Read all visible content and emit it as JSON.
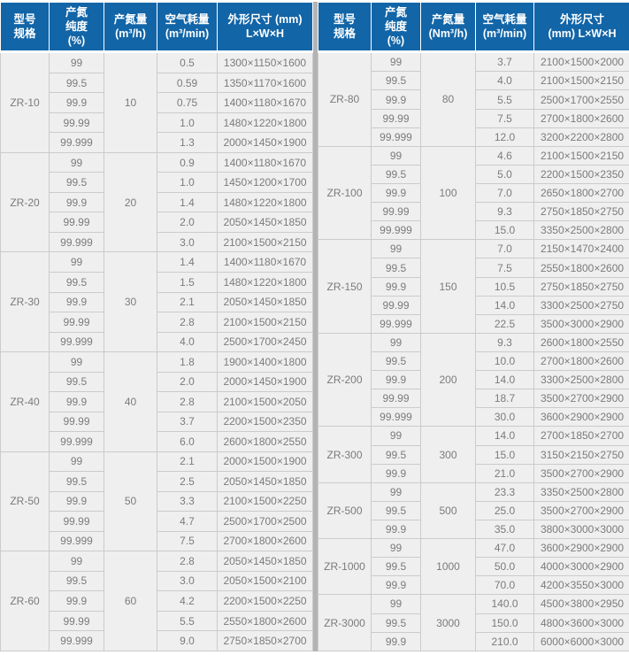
{
  "colors": {
    "header_bg": "#1265a7",
    "header_text": "#ffffff",
    "cell_bg": "#efefef",
    "cell_text": "#7b7b7b",
    "cell_border": "#cbcbcb",
    "outer_border": "#8f8f8f",
    "divider": "#b3b3b3"
  },
  "left_table": {
    "headers": [
      "型号\n规格",
      "产氮\n纯度\n(%)",
      "产氮量\n(m³/h)",
      "空气耗量\n(m³/min)",
      "外形尺寸 (mm)\nL×W×H"
    ],
    "groups": [
      {
        "model": "ZR-10",
        "output": "10",
        "rows": [
          {
            "purity": "99",
            "air": "0.5",
            "dims": "1300×1150×1600"
          },
          {
            "purity": "99.5",
            "air": "0.59",
            "dims": "1350×1170×1600"
          },
          {
            "purity": "99.9",
            "air": "0.75",
            "dims": "1400×1180×1670"
          },
          {
            "purity": "99.99",
            "air": "1.0",
            "dims": "1480×1220×1800"
          },
          {
            "purity": "99.999",
            "air": "1.3",
            "dims": "2000×1450×1900"
          }
        ]
      },
      {
        "model": "ZR-20",
        "output": "20",
        "rows": [
          {
            "purity": "99",
            "air": "0.9",
            "dims": "1400×1180×1670"
          },
          {
            "purity": "99.5",
            "air": "1.0",
            "dims": "1450×1200×1700"
          },
          {
            "purity": "99.9",
            "air": "1.4",
            "dims": "1480×1220×1800"
          },
          {
            "purity": "99.99",
            "air": "2.0",
            "dims": "2050×1450×1850"
          },
          {
            "purity": "99.999",
            "air": "3.0",
            "dims": "2100×1500×2150"
          }
        ]
      },
      {
        "model": "ZR-30",
        "output": "30",
        "rows": [
          {
            "purity": "99",
            "air": "1.4",
            "dims": "1400×1180×1670"
          },
          {
            "purity": "99.5",
            "air": "1.5",
            "dims": "1480×1220×1800"
          },
          {
            "purity": "99.9",
            "air": "2.1",
            "dims": "2050×1450×1850"
          },
          {
            "purity": "99.99",
            "air": "2.8",
            "dims": "2100×1500×2150"
          },
          {
            "purity": "99.999",
            "air": "4.0",
            "dims": "2500×1700×2450"
          }
        ]
      },
      {
        "model": "ZR-40",
        "output": "40",
        "rows": [
          {
            "purity": "99",
            "air": "1.8",
            "dims": "1900×1400×1800"
          },
          {
            "purity": "99.5",
            "air": "2.0",
            "dims": "2000×1450×1900"
          },
          {
            "purity": "99.9",
            "air": "2.8",
            "dims": "2100×1500×2050"
          },
          {
            "purity": "99.99",
            "air": "3.7",
            "dims": "2200×1500×2350"
          },
          {
            "purity": "99.999",
            "air": "6.0",
            "dims": "2600×1800×2550"
          }
        ]
      },
      {
        "model": "ZR-50",
        "output": "50",
        "rows": [
          {
            "purity": "99",
            "air": "2.1",
            "dims": "2000×1500×1900"
          },
          {
            "purity": "99.5",
            "air": "2.5",
            "dims": "2050×1450×1850"
          },
          {
            "purity": "99.9",
            "air": "3.3",
            "dims": "2100×1500×2250"
          },
          {
            "purity": "99.99",
            "air": "4.7",
            "dims": "2500×1700×2500"
          },
          {
            "purity": "99.999",
            "air": "7.5",
            "dims": "2700×1800×2600"
          }
        ]
      },
      {
        "model": "ZR-60",
        "output": "60",
        "rows": [
          {
            "purity": "99",
            "air": "2.8",
            "dims": "2050×1450×1850"
          },
          {
            "purity": "99.5",
            "air": "3.0",
            "dims": "2050×1500×2100"
          },
          {
            "purity": "99.9",
            "air": "4.2",
            "dims": "2200×1500×2250"
          },
          {
            "purity": "99.99",
            "air": "5.5",
            "dims": "2550×1800×2600"
          },
          {
            "purity": "99.999",
            "air": "9.0",
            "dims": "2750×1850×2700"
          }
        ]
      }
    ]
  },
  "right_table": {
    "headers": [
      "型号\n规格",
      "产氮\n纯度\n(%)",
      "产氮量\n(Nm³/h)",
      "空气耗量\n(m³/min)",
      "外形尺寸\n(mm)  L×W×H"
    ],
    "groups": [
      {
        "model": "ZR-80",
        "output": "80",
        "rows": [
          {
            "purity": "99",
            "air": "3.7",
            "dims": "2100×1500×2000"
          },
          {
            "purity": "99.5",
            "air": "4.0",
            "dims": "2100×1500×2150"
          },
          {
            "purity": "99.9",
            "air": "5.5",
            "dims": "2500×1700×2550"
          },
          {
            "purity": "99.99",
            "air": "7.5",
            "dims": "2700×1800×2600"
          },
          {
            "purity": "99.999",
            "air": "12.0",
            "dims": "3200×2200×2800"
          }
        ]
      },
      {
        "model": "ZR-100",
        "output": "100",
        "rows": [
          {
            "purity": "99",
            "air": "4.6",
            "dims": "2100×1500×2150"
          },
          {
            "purity": "99.5",
            "air": "5.0",
            "dims": "2200×1500×2350"
          },
          {
            "purity": "99.9",
            "air": "7.0",
            "dims": "2650×1800×2700"
          },
          {
            "purity": "99.99",
            "air": "9.3",
            "dims": "2750×1850×2750"
          },
          {
            "purity": "99.999",
            "air": "15.0",
            "dims": "3350×2500×2800"
          }
        ]
      },
      {
        "model": "ZR-150",
        "output": "150",
        "rows": [
          {
            "purity": "99",
            "air": "7.0",
            "dims": "2150×1470×2400"
          },
          {
            "purity": "99.5",
            "air": "7.5",
            "dims": "2550×1800×2600"
          },
          {
            "purity": "99.9",
            "air": "10.5",
            "dims": "2750×1850×2750"
          },
          {
            "purity": "99.99",
            "air": "14.0",
            "dims": "3300×2500×2750"
          },
          {
            "purity": "99.999",
            "air": "22.5",
            "dims": "3500×3000×2900"
          }
        ]
      },
      {
        "model": "ZR-200",
        "output": "200",
        "rows": [
          {
            "purity": "99",
            "air": "9.3",
            "dims": "2600×1800×2550"
          },
          {
            "purity": "99.5",
            "air": "10.0",
            "dims": "2700×1800×2600"
          },
          {
            "purity": "99.9",
            "air": "14.0",
            "dims": "3300×2500×2800"
          },
          {
            "purity": "99.99",
            "air": "18.7",
            "dims": "3500×2700×2900"
          },
          {
            "purity": "99.999",
            "air": "30.0",
            "dims": "3600×2900×2900"
          }
        ]
      },
      {
        "model": "ZR-300",
        "output": "300",
        "rows": [
          {
            "purity": "99",
            "air": "14.0",
            "dims": "2700×1850×2700"
          },
          {
            "purity": "99.5",
            "air": "15.0",
            "dims": "3150×2150×2750"
          },
          {
            "purity": "99.9",
            "air": "21.0",
            "dims": "3500×2700×2900"
          }
        ]
      },
      {
        "model": "ZR-500",
        "output": "500",
        "rows": [
          {
            "purity": "99",
            "air": "23.3",
            "dims": "3350×2500×2800"
          },
          {
            "purity": "99.5",
            "air": "25.0",
            "dims": "3500×2700×2900"
          },
          {
            "purity": "99.9",
            "air": "35.0",
            "dims": "3800×3000×3000"
          }
        ]
      },
      {
        "model": "ZR-1000",
        "output": "1000",
        "rows": [
          {
            "purity": "99",
            "air": "47.0",
            "dims": "3600×2900×2900"
          },
          {
            "purity": "99.5",
            "air": "50.0",
            "dims": "4000×3000×2900"
          },
          {
            "purity": "99.9",
            "air": "70.0",
            "dims": "4200×3550×3000"
          }
        ]
      },
      {
        "model": "ZR-3000",
        "output": "3000",
        "rows": [
          {
            "purity": "99",
            "air": "140.0",
            "dims": "4500×3800×2950"
          },
          {
            "purity": "99.5",
            "air": "150.0",
            "dims": "4800×3600×3000"
          },
          {
            "purity": "99.9",
            "air": "210.0",
            "dims": "6000×6000×3000"
          }
        ]
      }
    ]
  }
}
